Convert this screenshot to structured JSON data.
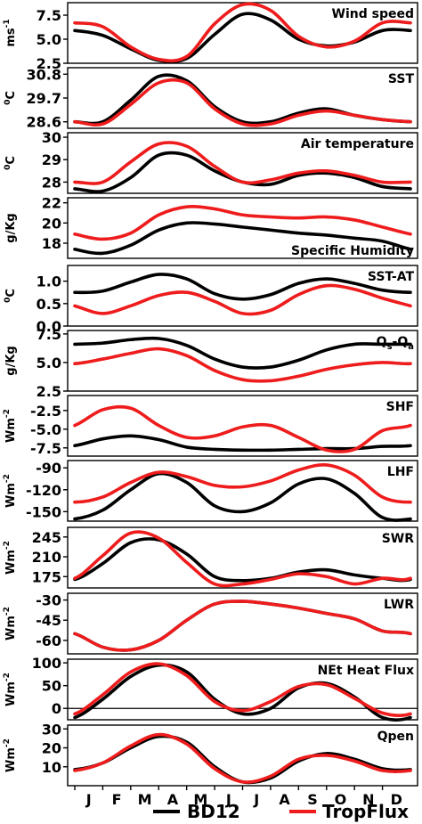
{
  "colors": {
    "bd12": "#000000",
    "tropflux": "#ee1c1c"
  },
  "legend": [
    {
      "name": "BD12",
      "color": "#000000"
    },
    {
      "name": "TropFlux",
      "color": "#ee1c1c"
    }
  ],
  "chart_data": {
    "type": "line",
    "x_label": "",
    "months": [
      "J",
      "F",
      "M",
      "A",
      "M",
      "J",
      "J",
      "A",
      "S",
      "O",
      "N",
      "D"
    ],
    "panels": [
      {
        "title": "Wind speed",
        "title_pos": "right",
        "unit_main": "ms",
        "unit_sup": "-1",
        "ylim": [
          2.5,
          8.8
        ],
        "ticks": [
          2.5,
          5.0,
          7.5
        ],
        "series": [
          {
            "name": "BD12",
            "values": [
              5.9,
              5.4,
              4.0,
              2.8,
              3.0,
              5.5,
              7.6,
              7.0,
              5.0,
              4.3,
              4.7,
              5.9
            ]
          },
          {
            "name": "TropFlux",
            "values": [
              6.7,
              6.3,
              4.2,
              2.9,
              3.2,
              6.6,
              8.6,
              8.0,
              5.3,
              4.2,
              4.8,
              6.7
            ]
          }
        ]
      },
      {
        "title": "SST",
        "title_pos": "right",
        "unit_main": "C",
        "unit_pre_sup": "0",
        "ylim": [
          28.3,
          31.1
        ],
        "ticks": [
          28.6,
          29.7,
          30.8
        ],
        "series": [
          {
            "name": "BD12",
            "values": [
              28.6,
              28.6,
              29.6,
              30.7,
              30.5,
              29.3,
              28.6,
              28.6,
              29.0,
              29.2,
              28.9,
              28.7
            ]
          },
          {
            "name": "TropFlux",
            "values": [
              28.6,
              28.5,
              29.4,
              30.4,
              30.4,
              29.2,
              28.5,
              28.5,
              28.9,
              29.1,
              28.9,
              28.7
            ]
          }
        ]
      },
      {
        "title": "Air temperature",
        "title_pos": "right",
        "unit_main": "C",
        "unit_pre_sup": "0",
        "ylim": [
          27.5,
          30.2
        ],
        "ticks": [
          28.0,
          29.0,
          30.0
        ],
        "series": [
          {
            "name": "BD12",
            "values": [
              27.7,
              27.6,
              28.2,
              29.2,
              29.2,
              28.5,
              28.0,
              27.9,
              28.3,
              28.4,
              28.2,
              27.8
            ]
          },
          {
            "name": "TropFlux",
            "values": [
              28.0,
              28.0,
              28.9,
              29.7,
              29.6,
              28.7,
              28.0,
              28.1,
              28.4,
              28.5,
              28.3,
              28.0
            ]
          }
        ]
      },
      {
        "title": "Specific Humidity",
        "title_pos": "bottom-right",
        "unit_main": "g/Kg",
        "ylim": [
          16.5,
          22.5
        ],
        "ticks": [
          18.0,
          20.0,
          22.0
        ],
        "series": [
          {
            "name": "BD12",
            "values": [
              17.4,
              17.0,
              17.8,
              19.3,
              20.0,
              19.9,
              19.6,
              19.3,
              19.0,
              18.8,
              18.5,
              18.2
            ]
          },
          {
            "name": "TropFlux",
            "values": [
              18.9,
              18.4,
              19.0,
              20.8,
              21.6,
              21.4,
              20.8,
              20.6,
              20.5,
              20.6,
              20.3,
              19.6
            ]
          }
        ]
      },
      {
        "title": "SST-AT",
        "title_pos": "right",
        "unit_main": "C",
        "unit_pre_sup": "0",
        "ylim": [
          0.0,
          1.35
        ],
        "ticks": [
          0.0,
          0.5,
          1.0
        ],
        "series": [
          {
            "name": "BD12",
            "values": [
              0.75,
              0.78,
              0.98,
              1.15,
              1.05,
              0.72,
              0.6,
              0.7,
              0.95,
              1.05,
              0.95,
              0.8
            ]
          },
          {
            "name": "TropFlux",
            "values": [
              0.45,
              0.28,
              0.45,
              0.68,
              0.75,
              0.55,
              0.28,
              0.35,
              0.7,
              0.9,
              0.82,
              0.62
            ]
          }
        ]
      },
      {
        "title_main": "Q",
        "title_sub1": "s",
        "title_mid": "-Q",
        "title_sub2": "a",
        "title_pos": "right",
        "unit_main": "g/Kg",
        "ylim": [
          2.5,
          7.8
        ],
        "ticks": [
          2.5,
          5.0,
          7.5
        ],
        "series": [
          {
            "name": "BD12",
            "values": [
              6.6,
              6.7,
              7.0,
              7.1,
              6.5,
              5.3,
              4.6,
              4.6,
              5.2,
              6.1,
              6.6,
              6.6
            ]
          },
          {
            "name": "TropFlux",
            "values": [
              4.9,
              5.3,
              5.8,
              6.2,
              5.6,
              4.3,
              3.5,
              3.4,
              3.8,
              4.4,
              4.8,
              5.0
            ]
          }
        ]
      },
      {
        "title": "SHF",
        "title_pos": "right",
        "unit_main": "Wm",
        "unit_sup": "-2",
        "ylim": [
          -8.6,
          -0.5
        ],
        "ticks": [
          -7.5,
          -5.0,
          -2.5
        ],
        "series": [
          {
            "name": "BD12",
            "values": [
              -7.2,
              -6.3,
              -5.9,
              -6.4,
              -7.4,
              -7.7,
              -7.8,
              -7.8,
              -7.7,
              -7.6,
              -7.6,
              -7.3
            ]
          },
          {
            "name": "TropFlux",
            "values": [
              -4.5,
              -2.4,
              -2.2,
              -4.5,
              -6.1,
              -5.9,
              -4.7,
              -4.5,
              -6.1,
              -7.8,
              -7.7,
              -5.2
            ]
          }
        ]
      },
      {
        "title": "LHF",
        "title_pos": "right",
        "unit_main": "Wm",
        "unit_sup": "-2",
        "ylim": [
          -163,
          -80
        ],
        "ticks": [
          -150,
          -120,
          -90
        ],
        "series": [
          {
            "name": "BD12",
            "values": [
              -160,
              -148,
              -120,
              -98,
              -110,
              -142,
              -150,
              -138,
              -112,
              -105,
              -125,
              -158
            ]
          },
          {
            "name": "TropFlux",
            "values": [
              -137,
              -130,
              -110,
              -96,
              -102,
              -114,
              -116,
              -108,
              -93,
              -86,
              -100,
              -130
            ]
          }
        ]
      },
      {
        "title": "SWR",
        "title_pos": "right",
        "unit_main": "Wm",
        "unit_sup": "-2",
        "ylim": [
          155,
          262
        ],
        "ticks": [
          175,
          210,
          245
        ],
        "series": [
          {
            "name": "BD12",
            "values": [
              170,
              198,
              235,
              240,
              215,
              175,
              168,
              172,
              183,
              187,
              178,
              172
            ]
          },
          {
            "name": "TropFlux",
            "values": [
              172,
              212,
              252,
              243,
              200,
              162,
              162,
              170,
              180,
              175,
              162,
              172
            ]
          }
        ]
      },
      {
        "title": "LWR",
        "title_pos": "right",
        "unit_main": "Wm",
        "unit_sup": "-2",
        "ylim": [
          -70,
          -25
        ],
        "ticks": [
          -60,
          -45,
          -30
        ],
        "series": [
          {
            "name": "BD12",
            "values": [
              -55,
              -65,
              -67,
              -60,
              -45,
              -33,
              -31,
              -33,
              -36,
              -40,
              -44,
              -53
            ]
          },
          {
            "name": "TropFlux",
            "values": [
              -55,
              -65,
              -67,
              -60,
              -45,
              -33,
              -31,
              -33,
              -36,
              -40,
              -44,
              -53
            ]
          }
        ]
      },
      {
        "title": "NEt Heat Flux",
        "title_pos": "right",
        "unit_main": "Wm",
        "unit_sup": "-2",
        "zero_line": true,
        "ylim": [
          -25,
          108
        ],
        "ticks": [
          0,
          50,
          100
        ],
        "series": [
          {
            "name": "BD12",
            "values": [
              -20,
              20,
              70,
              95,
              80,
              20,
              -12,
              0,
              45,
              55,
              25,
              -20
            ]
          },
          {
            "name": "TropFlux",
            "values": [
              -12,
              30,
              80,
              98,
              72,
              15,
              -5,
              15,
              48,
              52,
              22,
              -10
            ]
          }
        ]
      },
      {
        "title": "Qpen",
        "title_pos": "right",
        "unit_main": "Wm",
        "unit_sup": "-2",
        "ylim": [
          0,
          32
        ],
        "ticks": [
          10.0,
          20.0,
          30.0
        ],
        "series": [
          {
            "name": "BD12",
            "values": [
              8.5,
              12,
              20,
              26,
              23,
              10,
              2,
              4,
              13,
              17,
              14,
              9
            ]
          },
          {
            "name": "TropFlux",
            "values": [
              8,
              12,
              21,
              27,
              22,
              9,
              2,
              5,
              14,
              16,
              13,
              8
            ]
          }
        ]
      }
    ]
  }
}
